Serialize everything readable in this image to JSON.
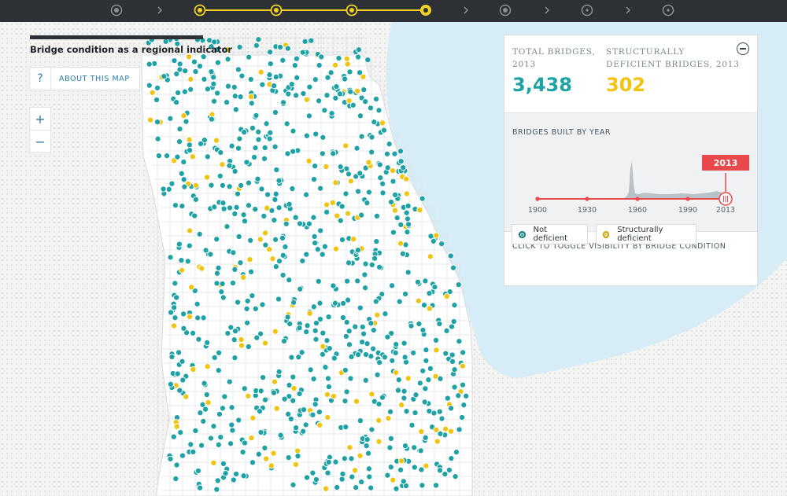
{
  "map": {
    "title": "Bridge condition as a regional indicator",
    "about_label": "ABOUT THIS MAP",
    "about_icon": "?",
    "zoom_in": "+",
    "zoom_out": "−"
  },
  "nav": {
    "steps": 9,
    "active_steps": [
      2,
      3,
      4,
      5
    ],
    "current_step": 5,
    "colors": {
      "active": "#f2d024",
      "inactive": "#8b9096",
      "bar": "#2d3035"
    }
  },
  "panel": {
    "total_label": "TOTAL BRIDGES, 2013",
    "total_value": "3,438",
    "deficient_label": "STRUCTURALLY DEFICIENT BRIDGES, 2013",
    "deficient_value": "302",
    "histogram_label": "BRIDGES BUILT BY YEAR",
    "ticks": [
      "1900",
      "1930",
      "1960",
      "1990",
      "2013"
    ],
    "selected_year": "2013",
    "toggle_label": "CLICK TO TOGGLE VISIBILITY BY BRIDGE CONDITION",
    "toggle_not_deficient": "Not deficient",
    "toggle_deficient": "Structurally deficient"
  },
  "colors": {
    "not_deficient": "#1fa2a6",
    "deficient": "#f1c40f",
    "water": "#d6ecf7",
    "accent": "#e9494d"
  }
}
